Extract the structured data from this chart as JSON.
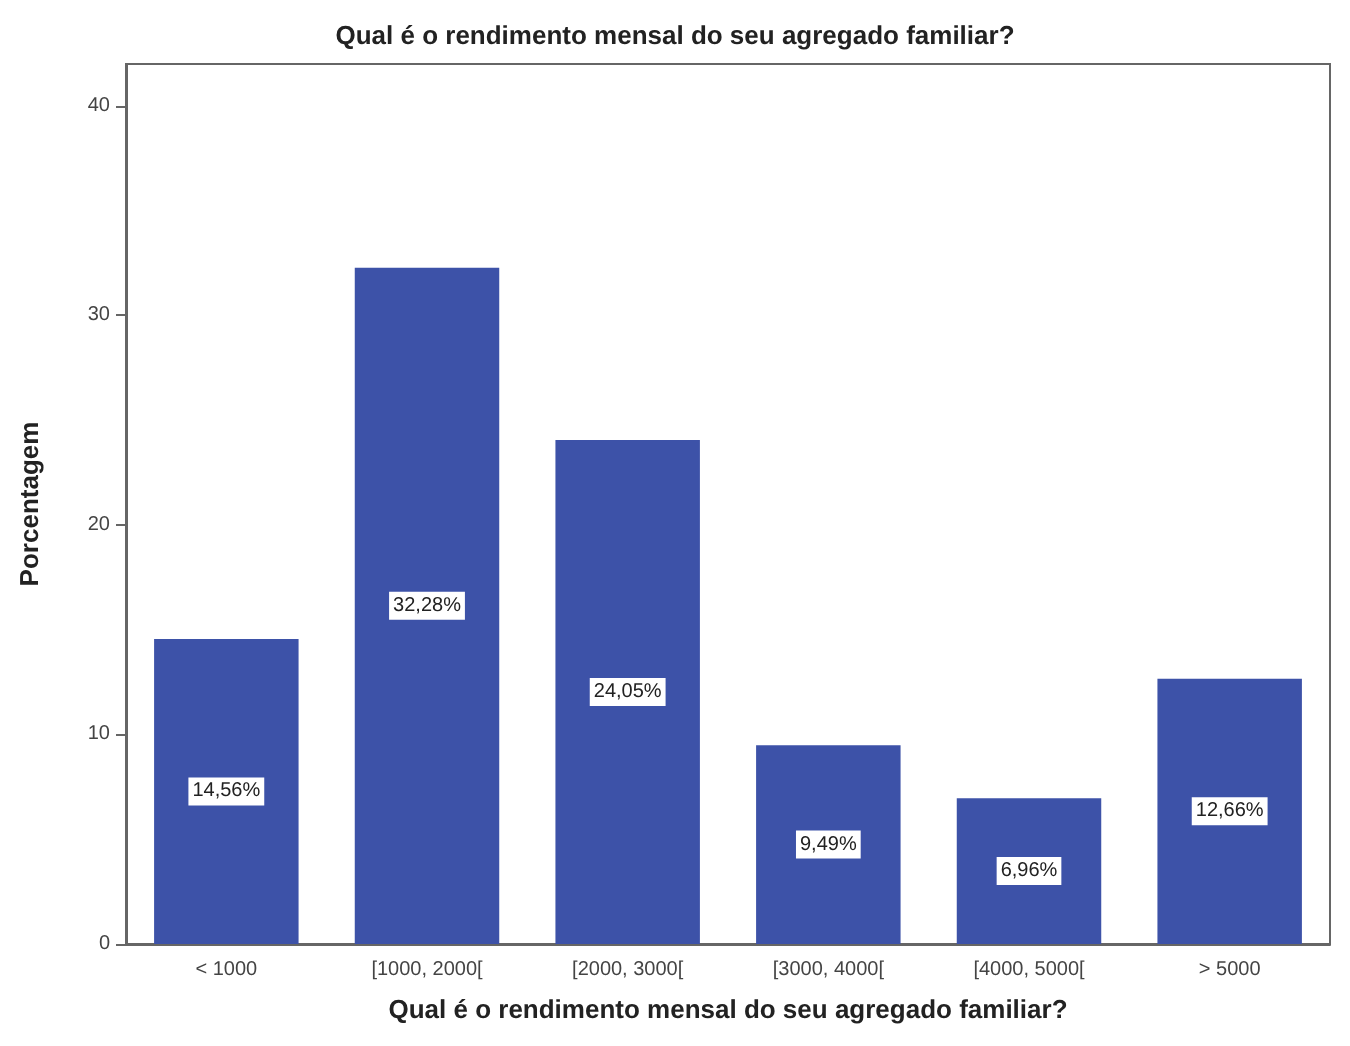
{
  "chart_data": {
    "type": "bar",
    "title": "Qual é o rendimento mensal do seu agregado familiar?",
    "xlabel": "Qual é o rendimento mensal do seu agregado familiar?",
    "ylabel": "Porcentagem",
    "categories": [
      "< 1000",
      "[1000, 2000[",
      "[2000, 3000[",
      "[3000, 4000[",
      "[4000, 5000[",
      "> 5000"
    ],
    "values": [
      14.56,
      32.28,
      24.05,
      9.49,
      6.96,
      12.66
    ],
    "value_labels": [
      "14,56%",
      "32,28%",
      "24,05%",
      "9,49%",
      "6,96%",
      "12,66%"
    ],
    "color": "#3d52a8",
    "ylim": [
      0,
      42
    ],
    "yticks": [
      0,
      10,
      20,
      30,
      40
    ],
    "grid": false
  }
}
